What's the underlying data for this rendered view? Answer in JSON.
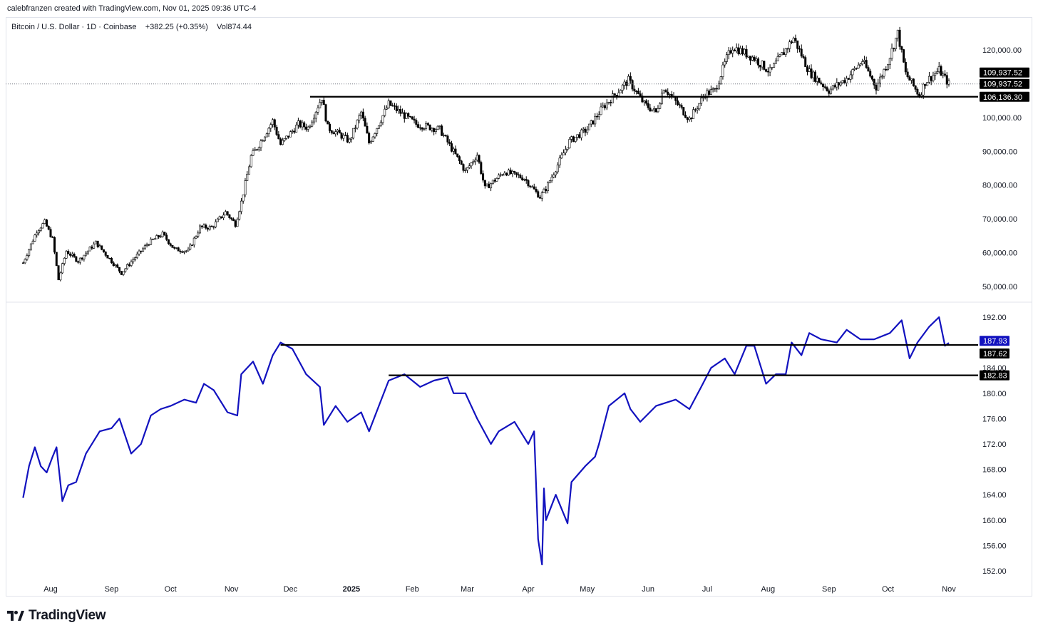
{
  "header": {
    "credit": "calebfranzen created with TradingView.com, Nov 01, 2025 09:36 UTC-4"
  },
  "legend": {
    "symbol": "Bitcoin / U.S. Dollar · 1D · Coinbase",
    "change": "+382.25 (+0.35%)",
    "volume": "Vol874.44"
  },
  "logo": {
    "text": "TradingView",
    "icon": "tradingview-logo-icon"
  },
  "colors": {
    "candle": "#000000",
    "line": "#1212bf",
    "badge_dark": "#000000",
    "badge_blue": "#1212bf",
    "grid": "#e0e3eb"
  },
  "chart_data": [
    {
      "type": "candlestick",
      "title": "Bitcoin / U.S. Dollar · 1D · Coinbase",
      "ylim": [
        47000,
        127000
      ],
      "y_ticks": [
        "120,000.00",
        "110,000.00",
        "100,000.00",
        "90,000.00",
        "80,000.00",
        "70,000.00",
        "60,000.00",
        "50,000.00"
      ],
      "y_tick_values": [
        120000,
        110000,
        100000,
        90000,
        80000,
        70000,
        60000,
        50000
      ],
      "last_price": 109937.52,
      "price_labels": [
        "109,937.52",
        "109,937.52",
        "106,136.30"
      ],
      "horizontal_lines": [
        {
          "value": 106136.3,
          "from": "2024-12-11",
          "to": "2025-11-01"
        }
      ],
      "series_close": [
        [
          "2024-07-18",
          57000
        ],
        [
          "2024-07-25",
          66500
        ],
        [
          "2024-07-29",
          69000
        ],
        [
          "2024-08-02",
          64000
        ],
        [
          "2024-08-05",
          52000
        ],
        [
          "2024-08-09",
          60500
        ],
        [
          "2024-08-15",
          57500
        ],
        [
          "2024-08-24",
          63000
        ],
        [
          "2024-09-01",
          57500
        ],
        [
          "2024-09-06",
          54000
        ],
        [
          "2024-09-12",
          58000
        ],
        [
          "2024-09-20",
          63000
        ],
        [
          "2024-09-27",
          65500
        ],
        [
          "2024-10-03",
          61000
        ],
        [
          "2024-10-10",
          60500
        ],
        [
          "2024-10-16",
          67500
        ],
        [
          "2024-10-22",
          67500
        ],
        [
          "2024-10-29",
          72000
        ],
        [
          "2024-11-03",
          68500
        ],
        [
          "2024-11-06",
          75000
        ],
        [
          "2024-11-11",
          88500
        ],
        [
          "2024-11-14",
          91000
        ],
        [
          "2024-11-22",
          99000
        ],
        [
          "2024-11-26",
          92000
        ],
        [
          "2024-12-05",
          98000
        ],
        [
          "2024-12-10",
          97000
        ],
        [
          "2024-12-17",
          106000
        ],
        [
          "2024-12-20",
          97000
        ],
        [
          "2024-12-26",
          95000
        ],
        [
          "2024-12-31",
          93000
        ],
        [
          "2025-01-06",
          101500
        ],
        [
          "2025-01-10",
          92500
        ],
        [
          "2025-01-20",
          104000
        ],
        [
          "2025-01-27",
          101000
        ],
        [
          "2025-02-03",
          98000
        ],
        [
          "2025-02-15",
          96500
        ],
        [
          "2025-02-25",
          87000
        ],
        [
          "2025-02-28",
          84000
        ],
        [
          "2025-03-06",
          89000
        ],
        [
          "2025-03-10",
          79000
        ],
        [
          "2025-03-20",
          84000
        ],
        [
          "2025-03-30",
          82000
        ],
        [
          "2025-04-07",
          76500
        ],
        [
          "2025-04-10",
          79000
        ],
        [
          "2025-04-22",
          93000
        ],
        [
          "2025-05-01",
          96500
        ],
        [
          "2025-05-09",
          103000
        ],
        [
          "2025-05-22",
          111000
        ],
        [
          "2025-05-30",
          104000
        ],
        [
          "2025-06-05",
          101500
        ],
        [
          "2025-06-09",
          109000
        ],
        [
          "2025-06-22",
          99500
        ],
        [
          "2025-06-30",
          107000
        ],
        [
          "2025-07-05",
          108000
        ],
        [
          "2025-07-11",
          117500
        ],
        [
          "2025-07-14",
          121000
        ],
        [
          "2025-07-25",
          117500
        ],
        [
          "2025-08-02",
          113500
        ],
        [
          "2025-08-14",
          123500
        ],
        [
          "2025-08-22",
          113500
        ],
        [
          "2025-09-01",
          108000
        ],
        [
          "2025-09-10",
          111500
        ],
        [
          "2025-09-18",
          116800
        ],
        [
          "2025-09-25",
          109000
        ],
        [
          "2025-10-01",
          116500
        ],
        [
          "2025-10-06",
          125000
        ],
        [
          "2025-10-10",
          113000
        ],
        [
          "2025-10-17",
          106500
        ],
        [
          "2025-10-20",
          110500
        ],
        [
          "2025-10-27",
          114000
        ],
        [
          "2025-11-01",
          109937.52
        ]
      ]
    },
    {
      "type": "line",
      "ylim": [
        151,
        193
      ],
      "y_ticks": [
        "192.00",
        "188.00",
        "184.00",
        "180.00",
        "176.00",
        "172.00",
        "168.00",
        "164.00",
        "160.00",
        "156.00",
        "152.00"
      ],
      "y_tick_values": [
        192,
        188,
        184,
        180,
        176,
        172,
        168,
        164,
        160,
        156,
        152
      ],
      "price_labels": [
        "187.93",
        "187.62",
        "182.83"
      ],
      "label_values": [
        187.93,
        187.62,
        182.83
      ],
      "horizontal_lines": [
        {
          "value": 187.62,
          "from": "2024-11-26",
          "to": "2025-11-01"
        },
        {
          "value": 182.83,
          "from": "2025-01-20",
          "to": "2025-11-01"
        }
      ],
      "series": [
        [
          "2024-07-18",
          163.5
        ],
        [
          "2024-07-21",
          168.5
        ],
        [
          "2024-07-24",
          171.5
        ],
        [
          "2024-07-27",
          168.5
        ],
        [
          "2024-07-30",
          167.5
        ],
        [
          "2024-08-02",
          170
        ],
        [
          "2024-08-04",
          171.5
        ],
        [
          "2024-08-07",
          163
        ],
        [
          "2024-08-10",
          165.5
        ],
        [
          "2024-08-14",
          166
        ],
        [
          "2024-08-19",
          170.5
        ],
        [
          "2024-08-26",
          174
        ],
        [
          "2024-09-01",
          174.5
        ],
        [
          "2024-09-05",
          176
        ],
        [
          "2024-09-11",
          170.5
        ],
        [
          "2024-09-16",
          172
        ],
        [
          "2024-09-21",
          176.5
        ],
        [
          "2024-09-26",
          177.5
        ],
        [
          "2024-10-01",
          178
        ],
        [
          "2024-10-08",
          179
        ],
        [
          "2024-10-14",
          178.5
        ],
        [
          "2024-10-18",
          181.5
        ],
        [
          "2024-10-23",
          180.5
        ],
        [
          "2024-10-30",
          177
        ],
        [
          "2024-11-04",
          176.5
        ],
        [
          "2024-11-06",
          183
        ],
        [
          "2024-11-12",
          185
        ],
        [
          "2024-11-17",
          181.5
        ],
        [
          "2024-11-22",
          186
        ],
        [
          "2024-11-26",
          188
        ],
        [
          "2024-12-02",
          187
        ],
        [
          "2024-12-09",
          183
        ],
        [
          "2024-12-16",
          181
        ],
        [
          "2024-12-18",
          175
        ],
        [
          "2024-12-24",
          178
        ],
        [
          "2024-12-30",
          175.5
        ],
        [
          "2025-01-06",
          177
        ],
        [
          "2025-01-10",
          174
        ],
        [
          "2025-01-15",
          178
        ],
        [
          "2025-01-20",
          182
        ],
        [
          "2025-01-28",
          183
        ],
        [
          "2025-02-05",
          181
        ],
        [
          "2025-02-12",
          182
        ],
        [
          "2025-02-19",
          182.5
        ],
        [
          "2025-02-22",
          180
        ],
        [
          "2025-02-28",
          180
        ],
        [
          "2025-03-03",
          178
        ],
        [
          "2025-03-06",
          176
        ],
        [
          "2025-03-13",
          172
        ],
        [
          "2025-03-17",
          174
        ],
        [
          "2025-03-25",
          175.5
        ],
        [
          "2025-04-01",
          172
        ],
        [
          "2025-04-04",
          174
        ],
        [
          "2025-04-06",
          157
        ],
        [
          "2025-04-08",
          153
        ],
        [
          "2025-04-09",
          165
        ],
        [
          "2025-04-10",
          160
        ],
        [
          "2025-04-15",
          164
        ],
        [
          "2025-04-21",
          159.5
        ],
        [
          "2025-04-23",
          166
        ],
        [
          "2025-04-30",
          168.5
        ],
        [
          "2025-05-05",
          170
        ],
        [
          "2025-05-07",
          172
        ],
        [
          "2025-05-12",
          178
        ],
        [
          "2025-05-20",
          180
        ],
        [
          "2025-05-23",
          177.5
        ],
        [
          "2025-05-28",
          175.5
        ],
        [
          "2025-06-05",
          178
        ],
        [
          "2025-06-15",
          179
        ],
        [
          "2025-06-22",
          177.5
        ],
        [
          "2025-06-28",
          181
        ],
        [
          "2025-07-03",
          184
        ],
        [
          "2025-07-10",
          185.5
        ],
        [
          "2025-07-15",
          183
        ],
        [
          "2025-07-21",
          187.5
        ],
        [
          "2025-07-25",
          187.5
        ],
        [
          "2025-07-31",
          181.5
        ],
        [
          "2025-08-05",
          183
        ],
        [
          "2025-08-10",
          183
        ],
        [
          "2025-08-13",
          188
        ],
        [
          "2025-08-18",
          186
        ],
        [
          "2025-08-22",
          189.5
        ],
        [
          "2025-08-28",
          188.5
        ],
        [
          "2025-09-05",
          188
        ],
        [
          "2025-09-10",
          190
        ],
        [
          "2025-09-17",
          188.5
        ],
        [
          "2025-09-24",
          188.5
        ],
        [
          "2025-10-02",
          189.5
        ],
        [
          "2025-10-08",
          191.5
        ],
        [
          "2025-10-12",
          185.5
        ],
        [
          "2025-10-16",
          188
        ],
        [
          "2025-10-22",
          190.5
        ],
        [
          "2025-10-27",
          192
        ],
        [
          "2025-10-30",
          187.5
        ],
        [
          "2025-11-01",
          187.93
        ]
      ]
    }
  ],
  "x_axis": {
    "labels": [
      "Aug",
      "Sep",
      "Oct",
      "Nov",
      "Dec",
      "2025",
      "Feb",
      "Mar",
      "Apr",
      "May",
      "Jun",
      "Jul",
      "Aug",
      "Sep",
      "Oct",
      "Nov"
    ],
    "dates": [
      "2024-08-01",
      "2024-09-01",
      "2024-10-01",
      "2024-11-01",
      "2024-12-01",
      "2025-01-01",
      "2025-02-01",
      "2025-03-01",
      "2025-04-01",
      "2025-05-01",
      "2025-06-01",
      "2025-07-01",
      "2025-08-01",
      "2025-09-01",
      "2025-10-01",
      "2025-11-01"
    ],
    "bold": [
      false,
      false,
      false,
      false,
      false,
      true,
      false,
      false,
      false,
      false,
      false,
      false,
      false,
      false,
      false,
      false
    ]
  }
}
